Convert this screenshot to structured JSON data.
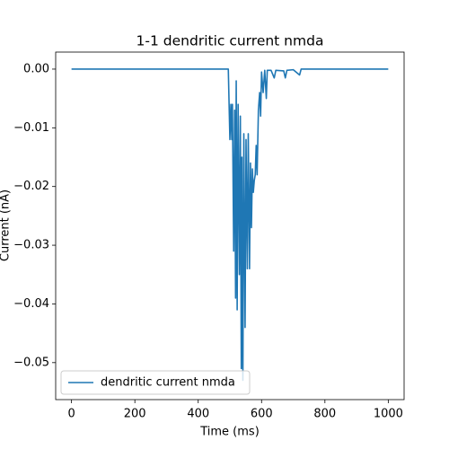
{
  "chart_data": {
    "type": "line",
    "title": "1-1 dendritic current nmda",
    "xlabel": "Time (ms)",
    "ylabel": "Current (nA)",
    "legend": "lower left",
    "xlim": [
      -50,
      1050
    ],
    "ylim": [
      -0.0563,
      0.0029
    ],
    "xticks": [
      0,
      200,
      400,
      600,
      800,
      1000
    ],
    "yticks": [
      {
        "value": 0,
        "label": "0.00"
      },
      {
        "value": -0.01,
        "label": "−0.01"
      },
      {
        "value": -0.02,
        "label": "−0.02"
      },
      {
        "value": -0.03,
        "label": "−0.03"
      },
      {
        "value": -0.04,
        "label": "−0.04"
      },
      {
        "value": -0.05,
        "label": "−0.05"
      }
    ],
    "x": [
      0,
      495,
      500,
      503,
      506,
      508,
      512,
      515,
      518,
      520,
      523,
      526,
      530,
      533,
      536,
      538,
      541,
      544,
      548,
      551,
      555,
      558,
      562,
      565,
      568,
      571,
      574,
      577,
      580,
      583,
      586,
      590,
      594,
      597,
      600,
      605,
      610,
      615,
      618,
      630,
      640,
      645,
      670,
      675,
      680,
      700,
      720,
      725,
      1000
    ],
    "series": [
      {
        "name": "dendritic current nmda",
        "color": "#1f77b4",
        "values": [
          0,
          0,
          -0.012,
          -0.006,
          -0.012,
          -0.006,
          -0.031,
          -0.007,
          -0.039,
          -0.002,
          -0.041,
          -0.006,
          -0.035,
          -0.008,
          -0.051,
          -0.015,
          -0.053,
          -0.011,
          -0.044,
          -0.012,
          -0.034,
          -0.011,
          -0.034,
          -0.016,
          -0.027,
          -0.017,
          -0.021,
          -0.019,
          -0.018,
          -0.013,
          -0.018,
          -0.007,
          -0.004,
          -0.008,
          -0.0005,
          -0.004,
          -0.0002,
          -0.005,
          -0.0002,
          -0.0002,
          -0.0015,
          -0.0002,
          -0.0003,
          -0.0015,
          -0.0002,
          -0.0001,
          -0.001,
          0,
          0
        ]
      }
    ]
  }
}
